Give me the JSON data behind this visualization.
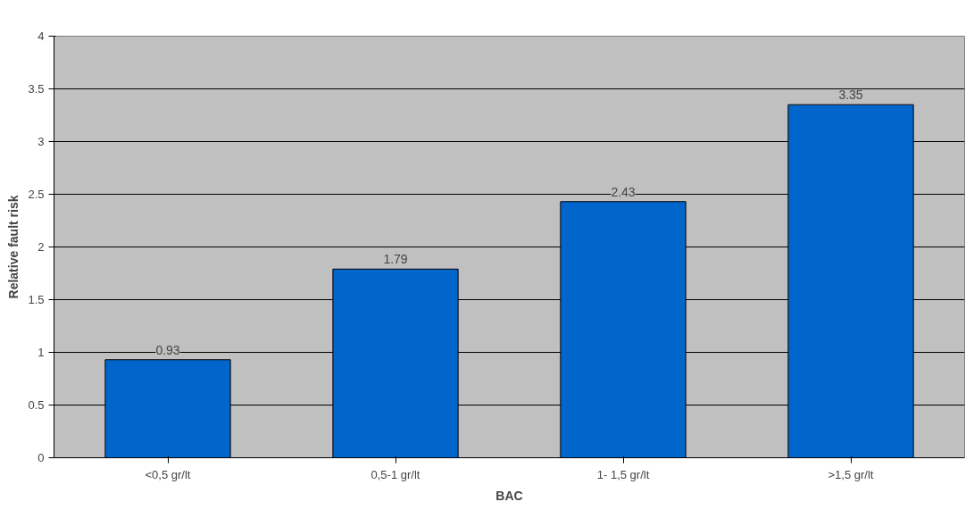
{
  "chart_data": {
    "type": "bar",
    "xlabel": "BAC",
    "ylabel": "Relative fault risk",
    "categories": [
      "<0,5 gr/lt",
      "0,5-1 gr/lt",
      "1- 1,5 gr/lt",
      ">1,5 gr/lt"
    ],
    "values": [
      0.93,
      1.79,
      2.43,
      3.35
    ],
    "color": "#0066cc",
    "ylim": [
      0,
      4
    ],
    "yticks": [
      0,
      0.5,
      1,
      1.5,
      2,
      2.5,
      3,
      3.5,
      4
    ],
    "grid": "y",
    "data_labels": true
  }
}
